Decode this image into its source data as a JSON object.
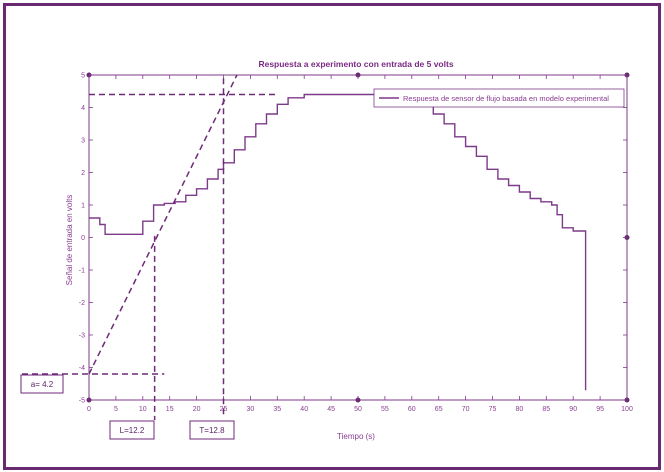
{
  "chart_data": {
    "type": "line",
    "title": "Respuesta a experimento con entrada de 5 volts",
    "xlabel": "Tiempo (s)",
    "ylabel": "Señal de entrada en volts",
    "xlim": [
      0,
      100
    ],
    "ylim": [
      -5,
      5
    ],
    "x_ticks": [
      "0",
      "5",
      "10",
      "15",
      "20",
      "25",
      "30",
      "35",
      "40",
      "45",
      "50",
      "55",
      "60",
      "65",
      "70",
      "75",
      "80",
      "85",
      "90",
      "95",
      "100"
    ],
    "y_ticks": [
      "-5",
      "-4",
      "-3",
      "-2",
      "-1",
      "0",
      "1",
      "2",
      "3",
      "4",
      "5"
    ],
    "grid": false,
    "legend": "top-right",
    "colors": {
      "line": "#7e3a8a",
      "frame": "#6a2a72"
    },
    "series": [
      {
        "name": "Respuesta de sensor de flujo basada en modelo experimental",
        "x": [
          0,
          2,
          3,
          5,
          7,
          9,
          10,
          12,
          14,
          16,
          18,
          20,
          22,
          24,
          25,
          27,
          29,
          31,
          33,
          35,
          37,
          40,
          45,
          50,
          55,
          58,
          60,
          62,
          64,
          66,
          68,
          70,
          72,
          74,
          76,
          78,
          80,
          82,
          84,
          86,
          87,
          88,
          90,
          92,
          92.3
        ],
        "y": [
          0.6,
          0.4,
          0.1,
          0.1,
          0.1,
          0.1,
          0.5,
          1.0,
          1.05,
          1.1,
          1.3,
          1.5,
          1.8,
          2.1,
          2.3,
          2.7,
          3.1,
          3.5,
          3.8,
          4.1,
          4.3,
          4.4,
          4.4,
          4.4,
          4.4,
          4.4,
          4.3,
          4.1,
          3.8,
          3.5,
          3.1,
          2.8,
          2.5,
          2.1,
          1.8,
          1.6,
          1.4,
          1.2,
          1.1,
          1.0,
          0.7,
          0.3,
          0.2,
          0.2,
          -4.7
        ]
      }
    ],
    "annotations": {
      "a_label": "a= 4.2",
      "l_label": "L=12.2",
      "t_label": "T=12.8",
      "a_value": -4.2,
      "l_value": 12.2,
      "t_value": 25,
      "level_value": 4.4
    }
  }
}
